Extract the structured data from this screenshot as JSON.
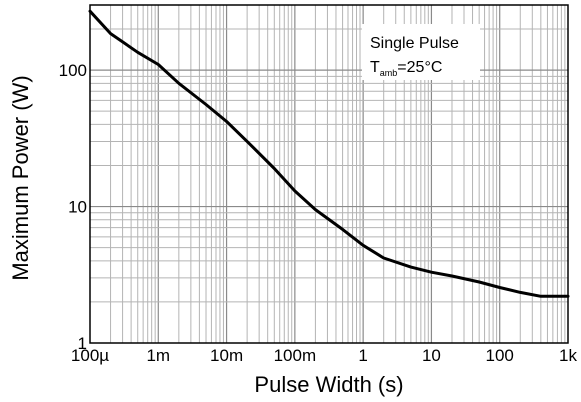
{
  "chart_data": {
    "type": "line",
    "xlabel": "Pulse Width (s)",
    "ylabel": "Maximum Power (W)",
    "x_scale": "log",
    "y_scale": "log",
    "xlim": [
      0.0001,
      1000
    ],
    "ylim": [
      1,
      300
    ],
    "grid": true,
    "x_ticks": [
      {
        "value": 0.0001,
        "label": "100µ"
      },
      {
        "value": 0.001,
        "label": "1m"
      },
      {
        "value": 0.01,
        "label": "10m"
      },
      {
        "value": 0.1,
        "label": "100m"
      },
      {
        "value": 1,
        "label": "1"
      },
      {
        "value": 10,
        "label": "10"
      },
      {
        "value": 100,
        "label": "100"
      },
      {
        "value": 1000,
        "label": "1k"
      }
    ],
    "y_ticks": [
      {
        "value": 1,
        "label": "1"
      },
      {
        "value": 10,
        "label": "10"
      },
      {
        "value": 100,
        "label": "100"
      }
    ],
    "annotation": {
      "line1": "Single Pulse",
      "line2_main": "T",
      "line2_sub": "amb",
      "line2_rest": "=25°C",
      "position": "top-right"
    },
    "series": [
      {
        "color": "#000000",
        "x": [
          0.0001,
          0.0002,
          0.0005,
          0.001,
          0.002,
          0.005,
          0.01,
          0.02,
          0.05,
          0.1,
          0.2,
          0.5,
          1,
          2,
          5,
          10,
          20,
          50,
          100,
          200,
          400,
          1000
        ],
        "y": [
          270,
          185,
          135,
          110,
          80,
          56,
          42,
          30,
          19,
          13,
          9.5,
          6.8,
          5.2,
          4.2,
          3.6,
          3.3,
          3.1,
          2.8,
          2.55,
          2.35,
          2.2,
          2.2
        ]
      }
    ]
  }
}
